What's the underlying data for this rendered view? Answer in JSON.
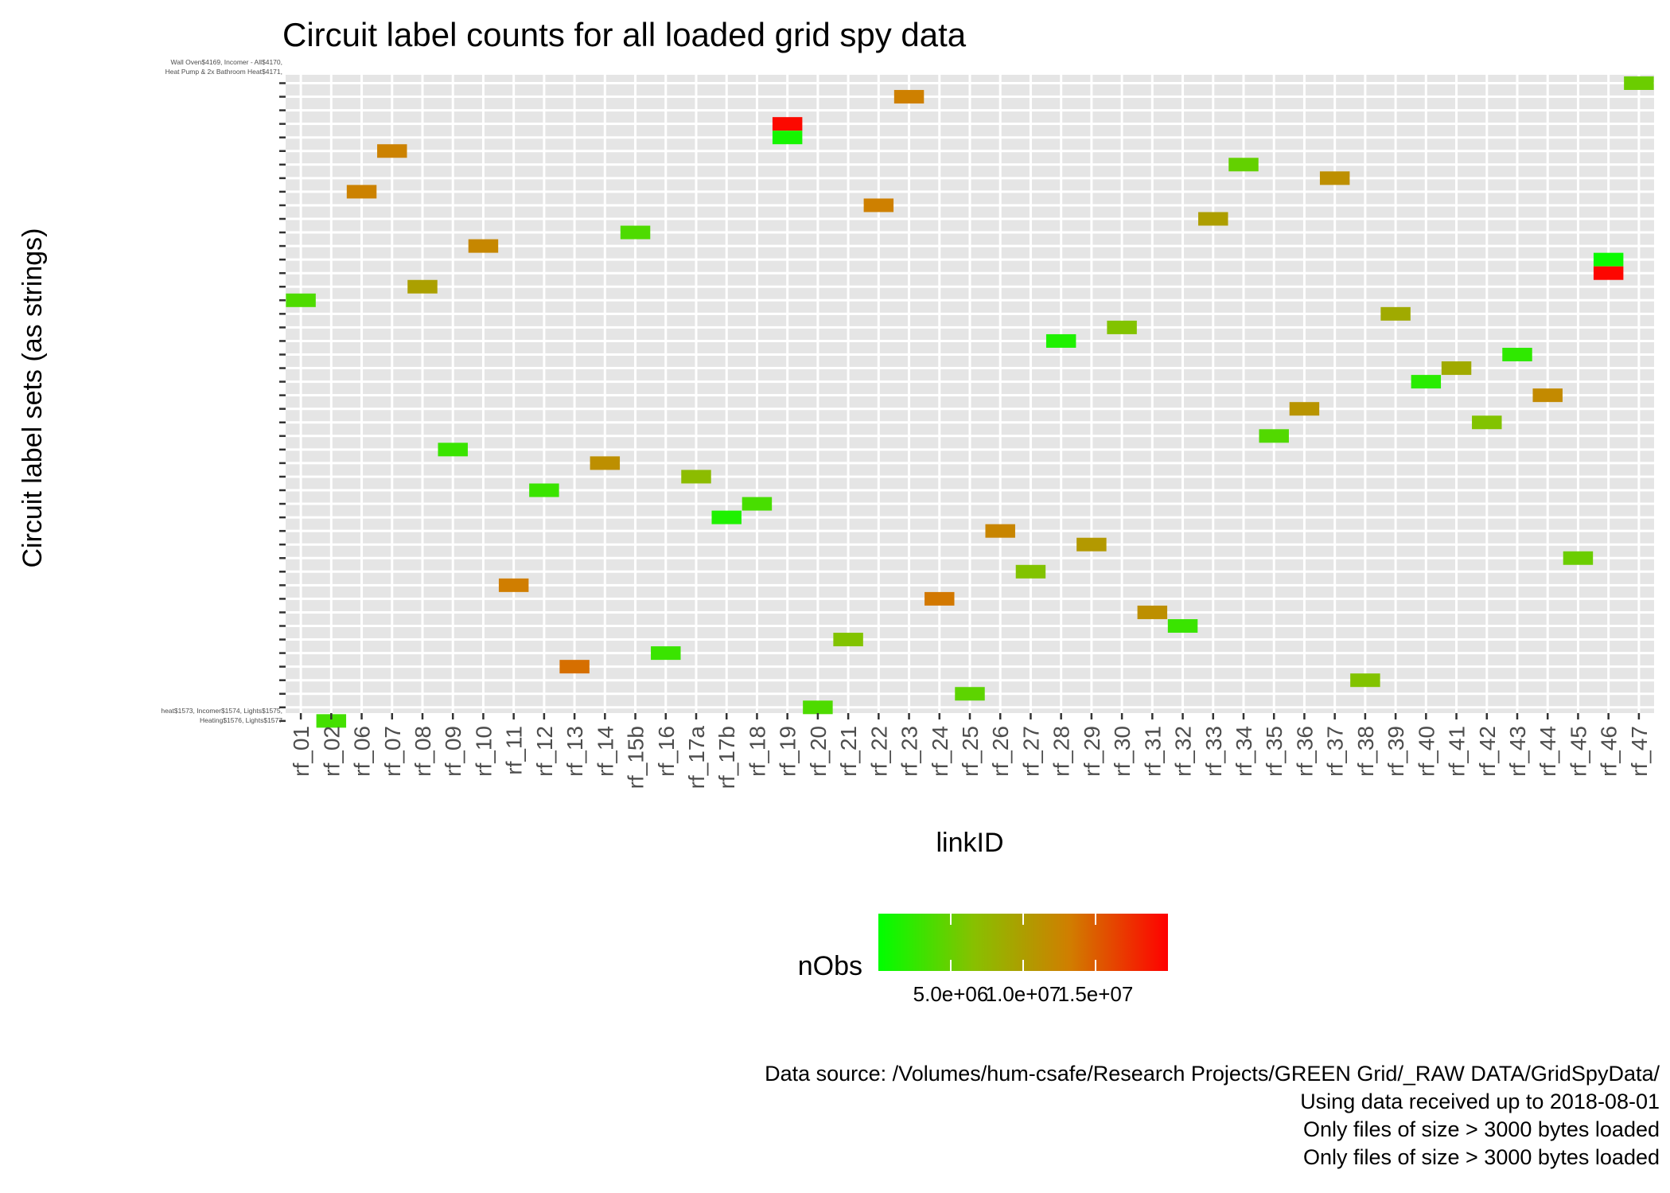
{
  "chart_data": {
    "type": "heatmap",
    "title": "Circuit label counts for all loaded grid spy data",
    "xlabel": "linkID",
    "ylabel": "Circuit label sets (as strings)",
    "x_categories": [
      "rf_01",
      "rf_02",
      "rf_06",
      "rf_07",
      "rf_08",
      "rf_09",
      "rf_10",
      "rf_11",
      "rf_12",
      "rf_13",
      "rf_14",
      "rf_15b",
      "rf_16",
      "rf_17a",
      "rf_17b",
      "rf_18",
      "rf_19",
      "rf_20",
      "rf_21",
      "rf_22",
      "rf_23",
      "rf_24",
      "rf_25",
      "rf_26",
      "rf_27",
      "rf_28",
      "rf_29",
      "rf_30",
      "rf_31",
      "rf_32",
      "rf_33",
      "rf_34",
      "rf_35",
      "rf_36",
      "rf_37",
      "rf_38",
      "rf_39",
      "rf_40",
      "rf_41",
      "rf_42",
      "rf_43",
      "rf_44",
      "rf_45",
      "rf_46",
      "rf_47"
    ],
    "y_labels_top": [
      "Wall Oven$4169, Incomer - All$4170,",
      "Heat Pump & 2x Bathroom Heat$4171,"
    ],
    "y_labels_bottom": [
      "heat$1573, Incomer$1574, Lights$1575,",
      "Heating$1576, Lights$1577"
    ],
    "y_count": 47,
    "cells": [
      {
        "x": "rf_47",
        "row": 0,
        "value": 5200000
      },
      {
        "x": "rf_23",
        "row": 1,
        "value": 13000000
      },
      {
        "x": "rf_19",
        "row": 3,
        "value": 19500000
      },
      {
        "x": "rf_19",
        "row": 4,
        "value": 1000000
      },
      {
        "x": "rf_07",
        "row": 5,
        "value": 12800000
      },
      {
        "x": "rf_34",
        "row": 6,
        "value": 4800000
      },
      {
        "x": "rf_37",
        "row": 7,
        "value": 11500000
      },
      {
        "x": "rf_06",
        "row": 8,
        "value": 12800000
      },
      {
        "x": "rf_22",
        "row": 9,
        "value": 13000000
      },
      {
        "x": "rf_33",
        "row": 10,
        "value": 10000000
      },
      {
        "x": "rf_15b",
        "row": 11,
        "value": 3800000
      },
      {
        "x": "rf_10",
        "row": 12,
        "value": 12300000
      },
      {
        "x": "rf_46",
        "row": 13,
        "value": 500000
      },
      {
        "x": "rf_46",
        "row": 14,
        "value": 19700000
      },
      {
        "x": "rf_08",
        "row": 15,
        "value": 9800000
      },
      {
        "x": "rf_01",
        "row": 16,
        "value": 3800000
      },
      {
        "x": "rf_39",
        "row": 17,
        "value": 8800000
      },
      {
        "x": "rf_30",
        "row": 18,
        "value": 6300000
      },
      {
        "x": "rf_28",
        "row": 19,
        "value": 1500000
      },
      {
        "x": "rf_43",
        "row": 20,
        "value": 2300000
      },
      {
        "x": "rf_41",
        "row": 21,
        "value": 8800000
      },
      {
        "x": "rf_40",
        "row": 22,
        "value": 2000000
      },
      {
        "x": "rf_44",
        "row": 23,
        "value": 12000000
      },
      {
        "x": "rf_36",
        "row": 24,
        "value": 11000000
      },
      {
        "x": "rf_42",
        "row": 25,
        "value": 6300000
      },
      {
        "x": "rf_35",
        "row": 26,
        "value": 4000000
      },
      {
        "x": "rf_09",
        "row": 27,
        "value": 2800000
      },
      {
        "x": "rf_14",
        "row": 28,
        "value": 11500000
      },
      {
        "x": "rf_17a",
        "row": 29,
        "value": 7000000
      },
      {
        "x": "rf_12",
        "row": 30,
        "value": 2800000
      },
      {
        "x": "rf_18",
        "row": 31,
        "value": 3500000
      },
      {
        "x": "rf_17b",
        "row": 32,
        "value": 1500000
      },
      {
        "x": "rf_26",
        "row": 33,
        "value": 12500000
      },
      {
        "x": "rf_29",
        "row": 34,
        "value": 10500000
      },
      {
        "x": "rf_45",
        "row": 35,
        "value": 5200000
      },
      {
        "x": "rf_27",
        "row": 36,
        "value": 6300000
      },
      {
        "x": "rf_11",
        "row": 37,
        "value": 13200000
      },
      {
        "x": "rf_24",
        "row": 38,
        "value": 13500000
      },
      {
        "x": "rf_31",
        "row": 39,
        "value": 11500000
      },
      {
        "x": "rf_32",
        "row": 40,
        "value": 2800000
      },
      {
        "x": "rf_21",
        "row": 41,
        "value": 6300000
      },
      {
        "x": "rf_16",
        "row": 42,
        "value": 2800000
      },
      {
        "x": "rf_13",
        "row": 43,
        "value": 14000000
      },
      {
        "x": "rf_38",
        "row": 44,
        "value": 6300000
      },
      {
        "x": "rf_25",
        "row": 45,
        "value": 4500000
      },
      {
        "x": "rf_20",
        "row": 46,
        "value": 3800000
      },
      {
        "x": "rf_02",
        "row": 47,
        "value": 3300000
      }
    ],
    "color_scale": {
      "low": "#00FF00",
      "high": "#FF0000",
      "min": 0,
      "max": 20000000
    },
    "legend": {
      "title": "nObs",
      "position": "bottom",
      "tick_values": [
        5000000,
        10000000,
        15000000
      ],
      "tick_labels": [
        "5.0e+06",
        "1.0e+07",
        "1.5e+07"
      ]
    },
    "grid": true
  },
  "caption": [
    "Data source: /Volumes/hum-csafe/Research Projects/GREEN Grid/_RAW DATA/GridSpyData/",
    "Using data received up to 2018-08-01",
    "Only files of size > 3000 bytes loaded",
    "Only files of size > 3000 bytes loaded"
  ]
}
